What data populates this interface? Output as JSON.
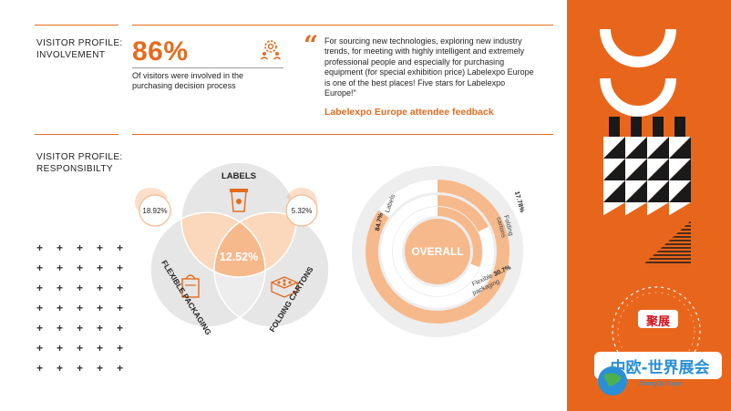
{
  "involvement": {
    "title_line1": "VISITOR PROFILE:",
    "title_line2": "INVOLVEMENT",
    "stat": "86%",
    "description": "Of visitors were involved in the purchasing decision process",
    "icon": "people-gear-icon"
  },
  "quote": {
    "text": "For sourcing new technologies, exploring new industry trends, for meeting with highly intelligent and extremely professional people and especially for purchasing equipment (for special exhibition price) Labelexpo Europe is one of the best places! Five stars for Labelexpo Europe!\"",
    "author": "Labelexpo Europe attendee feedback"
  },
  "responsibility": {
    "title_line1": "VISITOR PROFILE:",
    "title_line2": "RESPONSIBILTY"
  },
  "venn": {
    "labels_title": "LABELS",
    "flexible_title": "FLEXIBLE PACKAGING",
    "folding_title": "FOLDING CARTONS",
    "center_value": "12.52%",
    "labels_flexible_value": "18.92%",
    "labels_folding_value": "5.32%"
  },
  "donut": {
    "center_label": "OVERALL",
    "labels_name": "Labels",
    "labels_value": "84.7%",
    "folding_name_line1": "Folding",
    "folding_name_line2": "cartons",
    "folding_value": "17.78%",
    "flexible_name_line1": "Flexible",
    "flexible_name_line2": "packaging",
    "flexible_value": "30.7%"
  },
  "chart_data": {
    "type": "donut",
    "title": "OVERALL",
    "series": [
      {
        "name": "Labels",
        "value": 84.7
      },
      {
        "name": "Folding cartons",
        "value": 17.78
      },
      {
        "name": "Flexible packaging",
        "value": 30.7
      }
    ]
  },
  "watermark": {
    "badge_text": "聚展",
    "brand_text": "中欧-世界展会",
    "brand_sub": "ZhongOu Expo"
  },
  "colors": {
    "accent": "#e46b1f",
    "panel": "#e8661c",
    "light_orange": "#f6b98c",
    "gray": "#e6e6e6",
    "dark": "#222222"
  }
}
